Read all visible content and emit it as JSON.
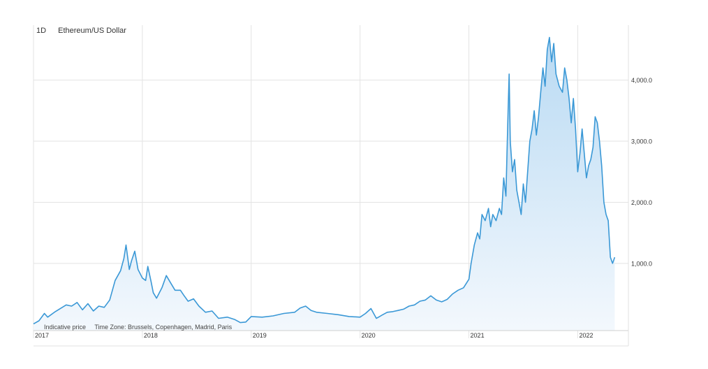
{
  "header": {
    "interval": "1D",
    "instrument": "Ethereum/US Dollar"
  },
  "footer": {
    "indicative": "Indicative price",
    "timezone": "Time Zone: Brussels, Copenhagen, Madrid, Paris"
  },
  "colors": {
    "line": "#3a98d6",
    "fill_top": "#b9daf3",
    "fill_bottom": "#f3f8fd",
    "grid": "#e3e3e3"
  },
  "chart_data": {
    "type": "area",
    "title": "Ethereum/US Dollar",
    "xlabel": "",
    "ylabel": "",
    "xlim": [
      2017.0,
      2022.35
    ],
    "ylim": [
      -100,
      4900
    ],
    "grid": true,
    "y_axis_position": "right",
    "xticks": [
      {
        "value": 2017.0,
        "label": "2017"
      },
      {
        "value": 2018.0,
        "label": "2018"
      },
      {
        "value": 2019.0,
        "label": "2019"
      },
      {
        "value": 2020.0,
        "label": "2020"
      },
      {
        "value": 2021.0,
        "label": "2021"
      },
      {
        "value": 2022.0,
        "label": "2022"
      }
    ],
    "yticks": [
      {
        "value": 1000,
        "label": "1,000.0"
      },
      {
        "value": 2000,
        "label": "2,000.0"
      },
      {
        "value": 3000,
        "label": "3,000.0"
      },
      {
        "value": 4000,
        "label": "4,000.0"
      }
    ],
    "series": [
      {
        "x": [
          2017.0,
          2017.05,
          2017.1,
          2017.13,
          2017.2,
          2017.3,
          2017.35,
          2017.4,
          2017.45,
          2017.5,
          2017.55,
          2017.6,
          2017.65,
          2017.7,
          2017.75,
          2017.8,
          2017.83,
          2017.85,
          2017.88,
          2017.9,
          2017.93,
          2017.96,
          2018.0,
          2018.03,
          2018.05,
          2018.08,
          2018.1,
          2018.13,
          2018.18,
          2018.22,
          2018.26,
          2018.3,
          2018.35,
          2018.38,
          2018.42,
          2018.47,
          2018.52,
          2018.58,
          2018.64,
          2018.7,
          2018.78,
          2018.85,
          2018.9,
          2018.95,
          2019.0,
          2019.1,
          2019.2,
          2019.3,
          2019.4,
          2019.45,
          2019.5,
          2019.55,
          2019.6,
          2019.7,
          2019.8,
          2019.9,
          2020.0,
          2020.05,
          2020.1,
          2020.15,
          2020.18,
          2020.2,
          2020.25,
          2020.3,
          2020.35,
          2020.4,
          2020.45,
          2020.5,
          2020.55,
          2020.6,
          2020.65,
          2020.7,
          2020.75,
          2020.8,
          2020.85,
          2020.9,
          2020.95,
          2021.0,
          2021.02,
          2021.05,
          2021.08,
          2021.1,
          2021.12,
          2021.15,
          2021.18,
          2021.2,
          2021.22,
          2021.25,
          2021.28,
          2021.3,
          2021.32,
          2021.34,
          2021.35,
          2021.36,
          2021.37,
          2021.38,
          2021.4,
          2021.42,
          2021.44,
          2021.46,
          2021.48,
          2021.5,
          2021.52,
          2021.54,
          2021.56,
          2021.58,
          2021.6,
          2021.62,
          2021.64,
          2021.66,
          2021.68,
          2021.7,
          2021.72,
          2021.74,
          2021.76,
          2021.78,
          2021.8,
          2021.83,
          2021.86,
          2021.88,
          2021.9,
          2021.92,
          2021.94,
          2021.96,
          2021.98,
          2022.0,
          2022.02,
          2022.04,
          2022.06,
          2022.08,
          2022.1,
          2022.12,
          2022.14,
          2022.16,
          2022.18,
          2022.2,
          2022.22,
          2022.24,
          2022.26,
          2022.28,
          2022.3,
          2022.32,
          2022.34
        ],
        "y": [
          10,
          60,
          180,
          120,
          210,
          320,
          300,
          360,
          240,
          340,
          220,
          300,
          280,
          400,
          720,
          880,
          1080,
          1300,
          900,
          1040,
          1200,
          900,
          760,
          720,
          950,
          700,
          520,
          430,
          600,
          800,
          680,
          560,
          560,
          480,
          380,
          420,
          300,
          200,
          220,
          100,
          120,
          80,
          30,
          40,
          130,
          120,
          140,
          180,
          200,
          270,
          300,
          230,
          200,
          180,
          160,
          130,
          120,
          180,
          260,
          100,
          130,
          150,
          200,
          210,
          230,
          250,
          300,
          320,
          380,
          400,
          470,
          400,
          370,
          410,
          500,
          560,
          600,
          740,
          1000,
          1300,
          1500,
          1400,
          1800,
          1700,
          1900,
          1600,
          1800,
          1700,
          1900,
          1800,
          2400,
          2100,
          2800,
          3500,
          4100,
          3000,
          2500,
          2700,
          2200,
          2000,
          1800,
          2300,
          2000,
          2500,
          3000,
          3200,
          3500,
          3100,
          3400,
          3800,
          4200,
          3900,
          4500,
          4700,
          4300,
          4600,
          4100,
          3900,
          3800,
          4200,
          4000,
          3700,
          3300,
          3700,
          3200,
          2500,
          2800,
          3200,
          2800,
          2400,
          2600,
          2700,
          2900,
          3400,
          3300,
          3000,
          2600,
          2000,
          1800,
          1700,
          1100,
          1000,
          1100
        ]
      }
    ]
  }
}
